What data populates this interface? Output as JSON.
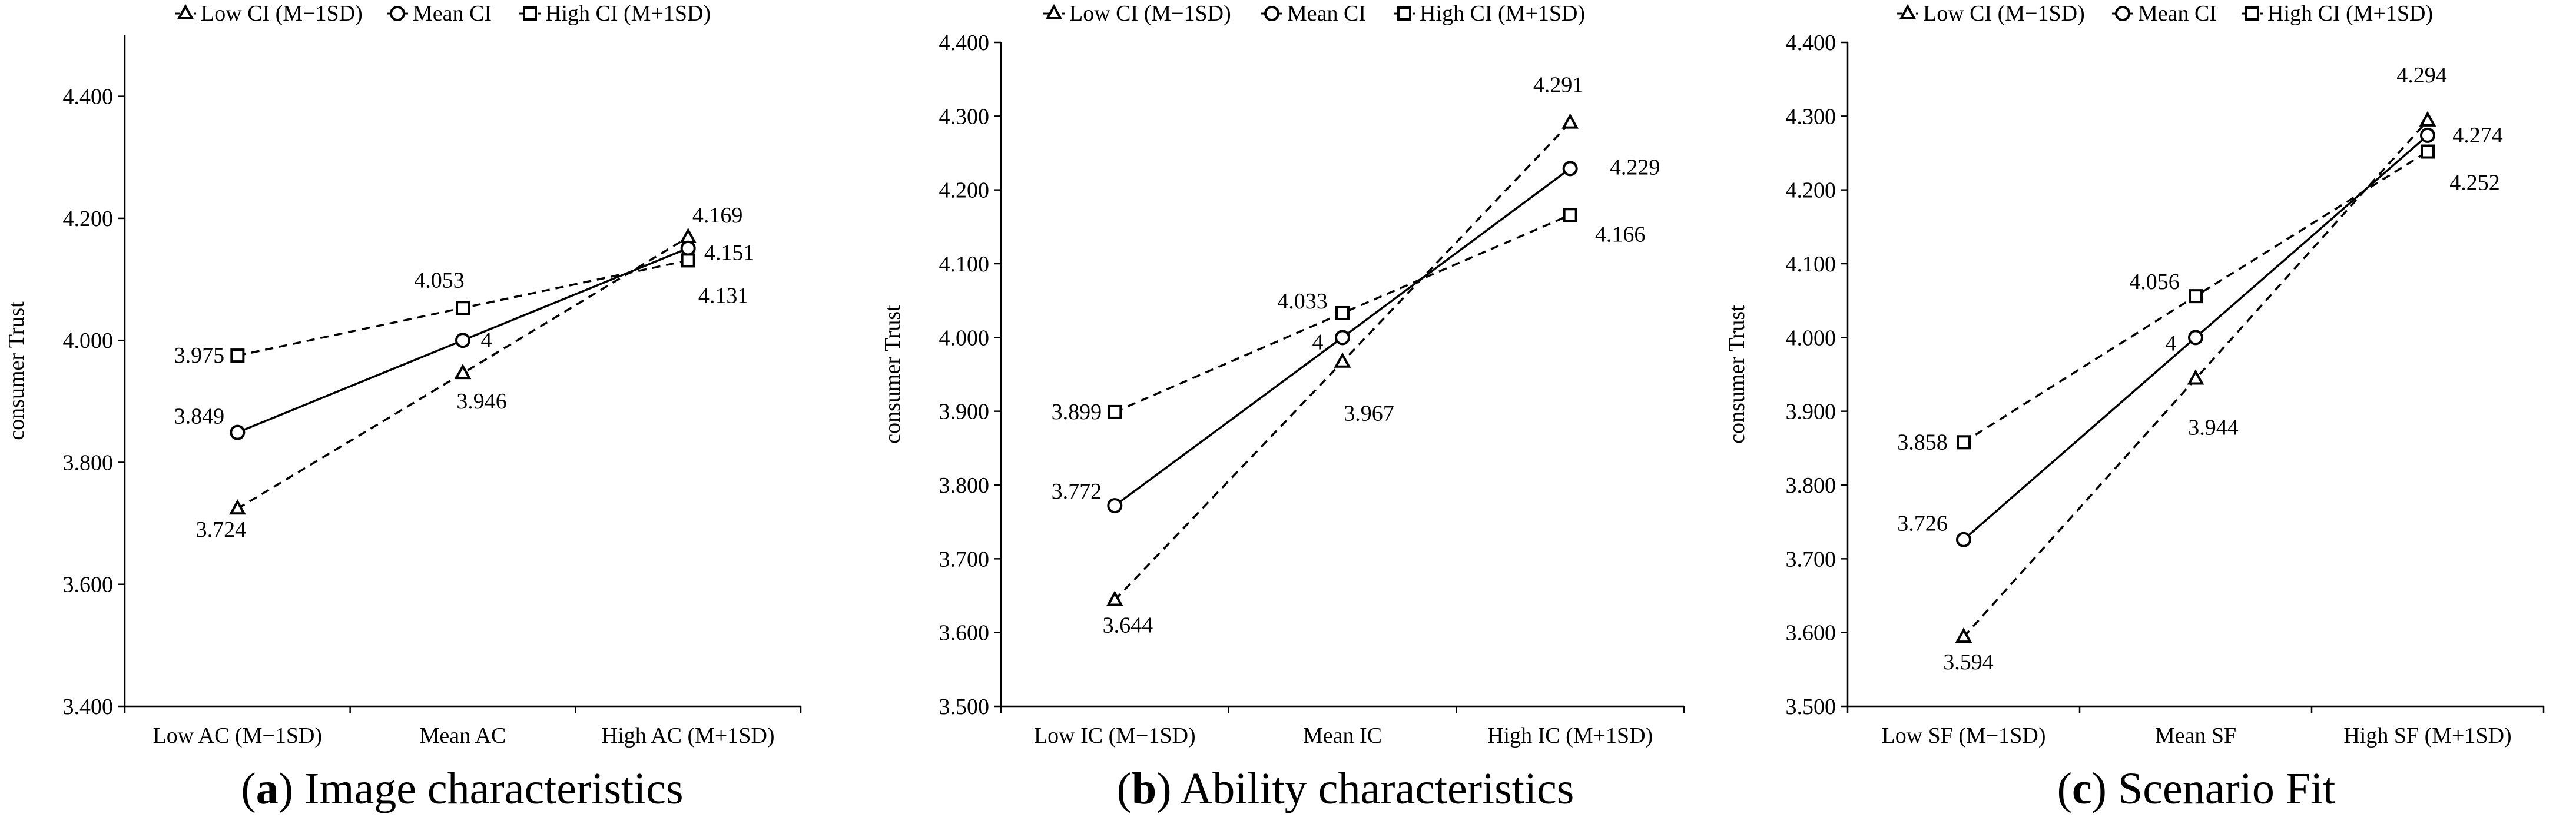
{
  "legend": [
    "Low CI (M−1SD)",
    "Mean CI",
    "High CI (M+1SD)"
  ],
  "colors": {
    "ink": "#000000",
    "background": "#ffffff"
  },
  "chart_data": [
    {
      "type": "line",
      "letter": "a",
      "caption": "Image characteristics",
      "ylabel": "consumer Trust",
      "ylim": [
        3.4,
        4.5
      ],
      "yticks": [
        "3.400",
        "3.600",
        "3.800",
        "4.000",
        "4.200",
        "4.400"
      ],
      "categories": [
        "Low AC (M−1SD)",
        "Mean AC",
        "High AC (M+1SD)"
      ],
      "series": [
        {
          "name": "Low CI (M−1SD)",
          "marker": "triangle",
          "dash": true,
          "values": [
            3.724,
            3.946,
            4.169
          ],
          "labels": [
            "3.724",
            "3.946",
            "4.169"
          ]
        },
        {
          "name": "Mean CI",
          "marker": "circle",
          "dash": false,
          "values": [
            3.849,
            4.0,
            4.151
          ],
          "labels": [
            "3.849",
            "4",
            "4.151"
          ]
        },
        {
          "name": "High CI (M+1SD)",
          "marker": "square",
          "dash": true,
          "values": [
            3.975,
            4.053,
            4.131
          ],
          "labels": [
            "3.975",
            "4.053",
            "4.131"
          ]
        }
      ]
    },
    {
      "type": "line",
      "letter": "b",
      "caption": "Ability characteristics",
      "ylabel": "consumer Trust",
      "ylim": [
        3.5,
        4.4
      ],
      "yticks": [
        "3.500",
        "3.600",
        "3.700",
        "3.800",
        "3.900",
        "4.000",
        "4.100",
        "4.200",
        "4.300",
        "4.400"
      ],
      "categories": [
        "Low IC (M−1SD)",
        "Mean IC",
        "High IC (M+1SD)"
      ],
      "series": [
        {
          "name": "Low CI (M−1SD)",
          "marker": "triangle",
          "dash": true,
          "values": [
            3.644,
            3.967,
            4.291
          ],
          "labels": [
            "3.644",
            "3.967",
            "4.291"
          ]
        },
        {
          "name": "Mean CI",
          "marker": "circle",
          "dash": false,
          "values": [
            3.772,
            4.0,
            4.229
          ],
          "labels": [
            "3.772",
            "4",
            "4.229"
          ]
        },
        {
          "name": "High CI (M+1SD)",
          "marker": "square",
          "dash": true,
          "values": [
            3.899,
            4.033,
            4.166
          ],
          "labels": [
            "3.899",
            "4.033",
            "4.166"
          ]
        }
      ]
    },
    {
      "type": "line",
      "letter": "c",
      "caption": "Scenario Fit",
      "ylabel": "consumer Trust",
      "ylim": [
        3.5,
        4.4
      ],
      "yticks": [
        "3.500",
        "3.600",
        "3.700",
        "3.800",
        "3.900",
        "4.000",
        "4.100",
        "4.200",
        "4.300",
        "4.400"
      ],
      "categories": [
        "Low SF (M−1SD)",
        "Mean SF",
        "High SF (M+1SD)"
      ],
      "series": [
        {
          "name": "Low CI (M−1SD)",
          "marker": "triangle",
          "dash": true,
          "values": [
            3.594,
            3.944,
            4.294
          ],
          "labels": [
            "3.594",
            "3.944",
            "4.294"
          ]
        },
        {
          "name": "Mean CI",
          "marker": "circle",
          "dash": false,
          "values": [
            3.726,
            4.0,
            4.274
          ],
          "labels": [
            "3.726",
            "4",
            "4.274"
          ]
        },
        {
          "name": "High CI (M+1SD)",
          "marker": "square",
          "dash": true,
          "values": [
            3.858,
            4.056,
            4.252
          ],
          "labels": [
            "3.858",
            "4.056",
            "4.252"
          ]
        }
      ]
    }
  ]
}
